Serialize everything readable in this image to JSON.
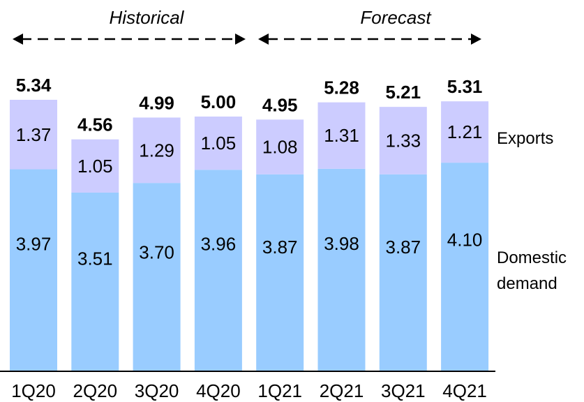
{
  "chart_data": {
    "type": "bar",
    "stacked": true,
    "categories": [
      "1Q20",
      "2Q20",
      "3Q20",
      "4Q20",
      "1Q21",
      "2Q21",
      "3Q21",
      "4Q21"
    ],
    "series": [
      {
        "name": "Domestic demand",
        "values": [
          3.97,
          3.51,
          3.7,
          3.96,
          3.87,
          3.98,
          3.87,
          4.1
        ],
        "color": "#99ccff"
      },
      {
        "name": "Exports",
        "values": [
          1.37,
          1.05,
          1.29,
          1.05,
          1.08,
          1.31,
          1.33,
          1.21
        ],
        "color": "#ccccff"
      }
    ],
    "totals": [
      5.34,
      4.56,
      4.99,
      5.0,
      4.95,
      5.28,
      5.21,
      5.31
    ],
    "periods": [
      {
        "label": "Historical",
        "from": "1Q20",
        "to": "4Q20"
      },
      {
        "label": "Forecast",
        "from": "1Q21",
        "to": "4Q21"
      }
    ],
    "legend": {
      "exports": "Exports",
      "domestic_line1": "Domestic",
      "domestic_line2": "demand"
    },
    "ylim": [
      0,
      5.4
    ],
    "grid": false
  }
}
